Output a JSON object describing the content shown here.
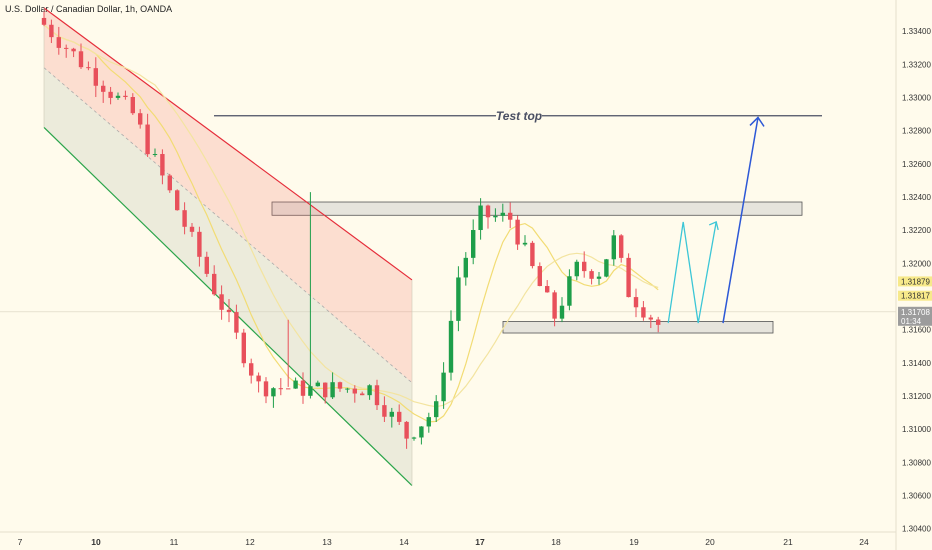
{
  "header": {
    "title": "U.S. Dollar / Canadian Dollar, 1h, OANDA"
  },
  "colors": {
    "background": "#fffbec",
    "bull": "#1e9e4a",
    "bear": "#e8505b",
    "channel_top": "#e52d3a",
    "channel_bottom": "#2aa44a",
    "ma": "#f2dc74",
    "zone_fill": "#e6e4dc",
    "projection_cyan": "#3cc6d6",
    "projection_blue": "#2d58d6",
    "price_label_bg": "#f7e98a",
    "last_price_bg": "#9c9c9c"
  },
  "chart_data": {
    "type": "candlestick",
    "title": "U.S. Dollar / Canadian Dollar, 1h, OANDA",
    "x_ticks": [
      "7",
      "10",
      "11",
      "12",
      "13",
      "14",
      "17",
      "18",
      "19",
      "20",
      "21",
      "24"
    ],
    "x_ticks_bold": [
      "10",
      "17"
    ],
    "y_ticks": [
      "1.33400",
      "1.33200",
      "1.33000",
      "1.32800",
      "1.32600",
      "1.32400",
      "1.32200",
      "1.32000",
      "1.31800",
      "1.31600",
      "1.31400",
      "1.31200",
      "1.31000",
      "1.30800",
      "1.30600",
      "1.30400"
    ],
    "ylim": [
      1.3038,
      1.3354
    ],
    "price_labels": [
      {
        "text": "1.31879",
        "value": 1.31879,
        "style": "ma"
      },
      {
        "text": "1.31817",
        "value": 1.31817,
        "style": "ma"
      },
      {
        "text": "1.31708",
        "value": 1.31708,
        "style": "last"
      },
      {
        "text": "01:34",
        "value": 1.31708,
        "style": "countdown"
      }
    ],
    "annotations": [
      {
        "text": "Test top",
        "value": 1.3289
      }
    ],
    "resistance_zone": [
      1.3229,
      1.3237
    ],
    "support_zone": [
      1.3158,
      1.3165
    ],
    "segments": [
      {
        "start": [
          0,
          1.3344
        ],
        "end": [
          12,
          1.329
        ]
      },
      {
        "start": [
          12,
          1.329
        ],
        "end": [
          21,
          1.3204
        ]
      },
      {
        "start": [
          21,
          1.3204
        ],
        "end": [
          29,
          1.3126
        ]
      },
      {
        "start": [
          29,
          1.3126
        ],
        "end": [
          36,
          1.3124
        ]
      },
      {
        "start": [
          36,
          1.3124
        ],
        "end": [
          44,
          1.3125
        ]
      },
      {
        "start": [
          44,
          1.3125
        ],
        "end": [
          49,
          1.3096
        ]
      },
      {
        "start": [
          49,
          1.3096
        ],
        "end": [
          53,
          1.3112
        ]
      },
      {
        "start": [
          53,
          1.3112
        ],
        "end": [
          56,
          1.3192
        ]
      },
      {
        "start": [
          56,
          1.3192
        ],
        "end": [
          59,
          1.3229
        ]
      },
      {
        "start": [
          59,
          1.3229
        ],
        "end": [
          63,
          1.3227
        ]
      },
      {
        "start": [
          63,
          1.3227
        ],
        "end": [
          67,
          1.3186
        ]
      },
      {
        "start": [
          67,
          1.3186
        ],
        "end": [
          69,
          1.3168
        ]
      },
      {
        "start": [
          69,
          1.3168
        ],
        "end": [
          72,
          1.3197
        ]
      },
      {
        "start": [
          72,
          1.3197
        ],
        "end": [
          75,
          1.3195
        ]
      },
      {
        "start": [
          75,
          1.3195
        ],
        "end": [
          77,
          1.3214
        ]
      },
      {
        "start": [
          77,
          1.3214
        ],
        "end": [
          79,
          1.3183
        ]
      },
      {
        "start": [
          79,
          1.3183
        ],
        "end": [
          83,
          1.3163
        ]
      }
    ]
  }
}
